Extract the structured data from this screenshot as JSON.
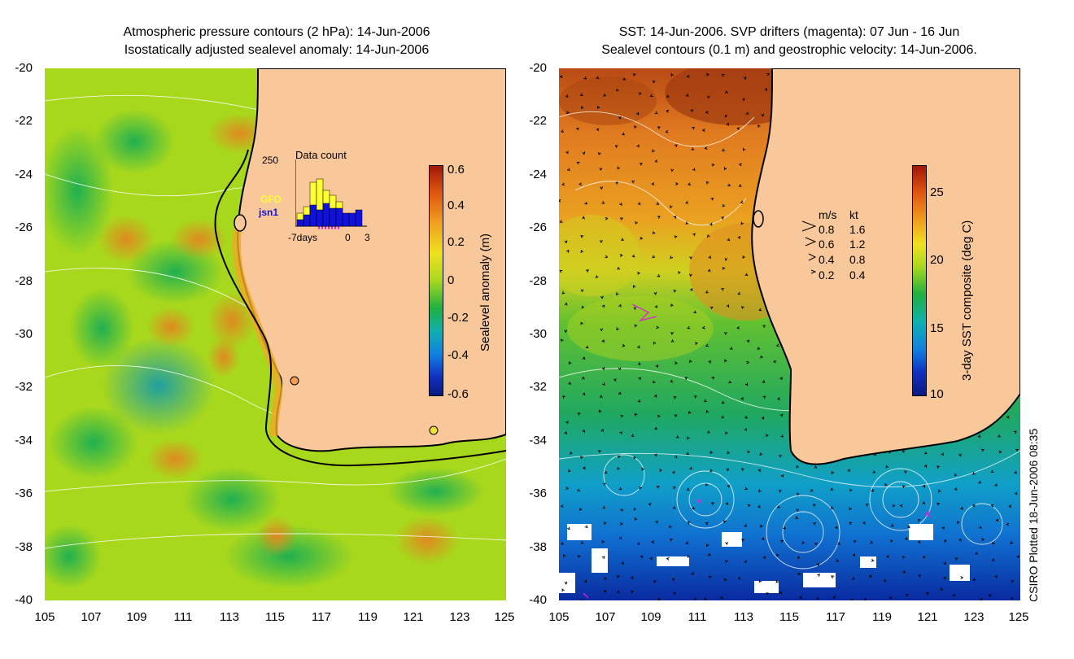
{
  "left_panel": {
    "title_line1": "Atmospheric pressure contours (2 hPa): 14-Jun-2006",
    "title_line2": "Isostatically adjusted sealevel anomaly: 14-Jun-2006",
    "colorbar_label": "Sealevel anomaly (m)",
    "colorbar_ticks": [
      "0.6",
      "0.4",
      "0.2",
      "0",
      "-0.2",
      "-0.4",
      "-0.6"
    ],
    "colorbar_range": [
      -0.6,
      0.6
    ],
    "inset": {
      "title": "Data count",
      "ymax_label": "250",
      "series1": "GFO",
      "series2": "jsn1",
      "x_labels": [
        "-7days",
        "0",
        "3"
      ],
      "series1_color": "#ffff33",
      "series2_color": "#1010e0"
    }
  },
  "right_panel": {
    "title_line1": "SST: 14-Jun-2006. SVP drifters (magenta): 07 Jun - 16 Jun",
    "title_line2": "Sealevel contours (0.1 m) and geostrophic velocity: 14-Jun-2006.",
    "colorbar_label": "3-day SST composite (deg C)",
    "colorbar_ticks": [
      "25",
      "20",
      "15",
      "10"
    ],
    "colorbar_range": [
      10,
      27
    ],
    "velocity_legend": {
      "header_ms": "m/s",
      "header_kt": "kt",
      "rows": [
        {
          "ms": "0.8",
          "kt": "1.6"
        },
        {
          "ms": "0.6",
          "kt": "1.2"
        },
        {
          "ms": "0.4",
          "kt": "0.8"
        },
        {
          "ms": "0.2",
          "kt": "0.4"
        }
      ]
    }
  },
  "axes": {
    "y_ticks": [
      "-20",
      "-22",
      "-24",
      "-26",
      "-28",
      "-30",
      "-32",
      "-34",
      "-36",
      "-38",
      "-40"
    ],
    "x_ticks": [
      "105",
      "107",
      "109",
      "111",
      "113",
      "115",
      "117",
      "119",
      "121",
      "123",
      "125"
    ],
    "lat_range": [
      -40,
      -20
    ],
    "lon_range": [
      105,
      125
    ]
  },
  "credit": "CSIRO Plotted 18-Jun-2006 08:35",
  "colors": {
    "land": "#f8c89a",
    "coastline": "#000000",
    "drifters": "#e020e0"
  }
}
